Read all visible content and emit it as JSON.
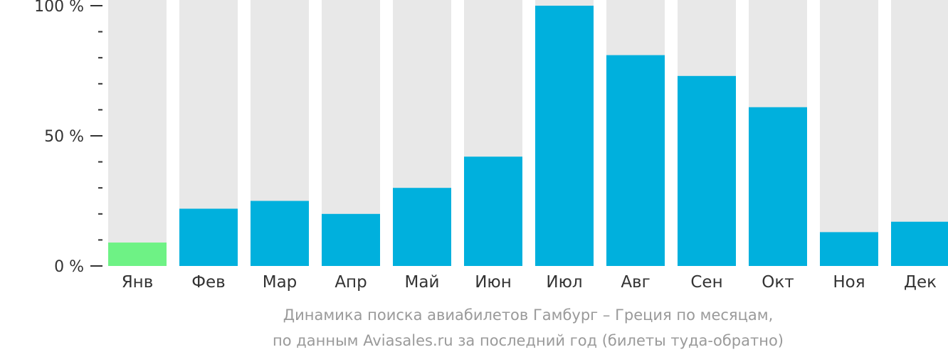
{
  "chart_data": {
    "type": "bar",
    "categories": [
      "Янв",
      "Фев",
      "Мар",
      "Апр",
      "Май",
      "Июн",
      "Июл",
      "Авг",
      "Сен",
      "Окт",
      "Ноя",
      "Дек"
    ],
    "values": [
      9,
      22,
      25,
      20,
      30,
      42,
      100,
      81,
      73,
      61,
      13,
      17
    ],
    "highlight_index": 0,
    "ylim": [
      0,
      100
    ],
    "yticks": [
      {
        "value": 0,
        "label": "0 %"
      },
      {
        "value": 50,
        "label": "50 %"
      },
      {
        "value": 100,
        "label": "100 %"
      }
    ],
    "minor_ticks": [
      10,
      20,
      30,
      40,
      60,
      70,
      80,
      90
    ],
    "title_line_1": "Динамика поиска авиабилетов Гамбург – Греция по месяцам,",
    "title_line_2": "по данным Aviasales.ru за последний год (билеты туда-обратно)",
    "colors": {
      "bar": "#00b0dd",
      "highlight": "#6ef285",
      "track": "#e8e8e8",
      "axis": "#333333",
      "tick_label": "#333333",
      "category_label": "#333333",
      "caption": "#9a9a9a"
    }
  }
}
